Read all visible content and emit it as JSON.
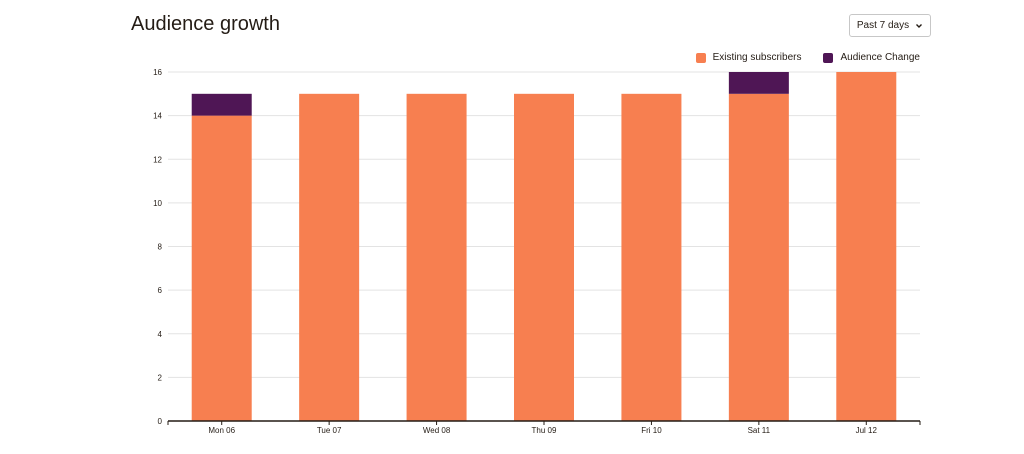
{
  "header": {
    "title": "Audience growth",
    "range_label": "Past 7 days"
  },
  "legend": [
    {
      "label": "Existing subscribers",
      "color": "#f77f50"
    },
    {
      "label": "Audience Change",
      "color": "#4f1655"
    }
  ],
  "chart_data": {
    "type": "bar",
    "stacked": true,
    "categories": [
      "Mon 06",
      "Tue 07",
      "Wed 08",
      "Thu 09",
      "Fri 10",
      "Sat 11",
      "Jul 12"
    ],
    "series": [
      {
        "name": "Existing subscribers",
        "color": "#f77f50",
        "values": [
          14,
          15,
          15,
          15,
          15,
          15,
          16
        ]
      },
      {
        "name": "Audience Change",
        "color": "#4f1655",
        "values": [
          1,
          0,
          0,
          0,
          0,
          1,
          0
        ]
      }
    ],
    "yticks": [
      0,
      2,
      4,
      6,
      8,
      10,
      12,
      14,
      16
    ],
    "ylim": [
      0,
      16
    ],
    "grid": true,
    "legend_position": "top-right"
  }
}
